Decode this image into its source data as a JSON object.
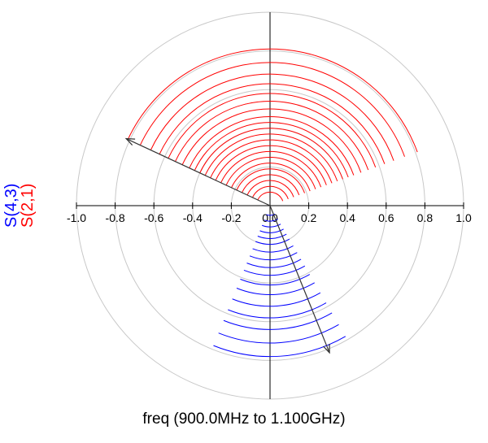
{
  "chart_data": {
    "type": "polar",
    "title": "",
    "xlabel": "freq (900.0MHz to 1.100GHz)",
    "radial_range": [
      0,
      1.0
    ],
    "circles": [
      0.2,
      0.4,
      0.6,
      0.8,
      1.0
    ],
    "tick_labels": [
      "-1.0",
      "-0.8",
      "-0.6",
      "-0.4",
      "-0.2",
      "0.0",
      "0.2",
      "0.4",
      "0.6",
      "0.8",
      "1.0"
    ],
    "grid": true,
    "legend_placement": "left, rotated vertical",
    "series": [
      {
        "name": "S(2,1)",
        "color": "#ff0000",
        "angle_range_deg": [
          20,
          155
        ],
        "radii": [
          0.07,
          0.1,
          0.13,
          0.16,
          0.19,
          0.22,
          0.25,
          0.28,
          0.31,
          0.34,
          0.37,
          0.4,
          0.43,
          0.46,
          0.5,
          0.54,
          0.58,
          0.63,
          0.68,
          0.74,
          0.81
        ],
        "marker_vector": {
          "angle_deg": 155,
          "magnitude": 0.82
        }
      },
      {
        "name": "S(4,3)",
        "color": "#0000ff",
        "angle_range_deg": [
          -112,
          -60
        ],
        "radii": [
          0.05,
          0.08,
          0.11,
          0.14,
          0.17,
          0.2,
          0.24,
          0.28,
          0.32,
          0.36,
          0.41,
          0.46,
          0.52,
          0.58,
          0.64,
          0.71,
          0.78
        ],
        "marker_vector": {
          "angle_deg": -68,
          "magnitude": 0.82
        }
      }
    ]
  },
  "colors": {
    "grid": "#c8c8c8",
    "axis": "#000000",
    "vector": "#333333"
  }
}
